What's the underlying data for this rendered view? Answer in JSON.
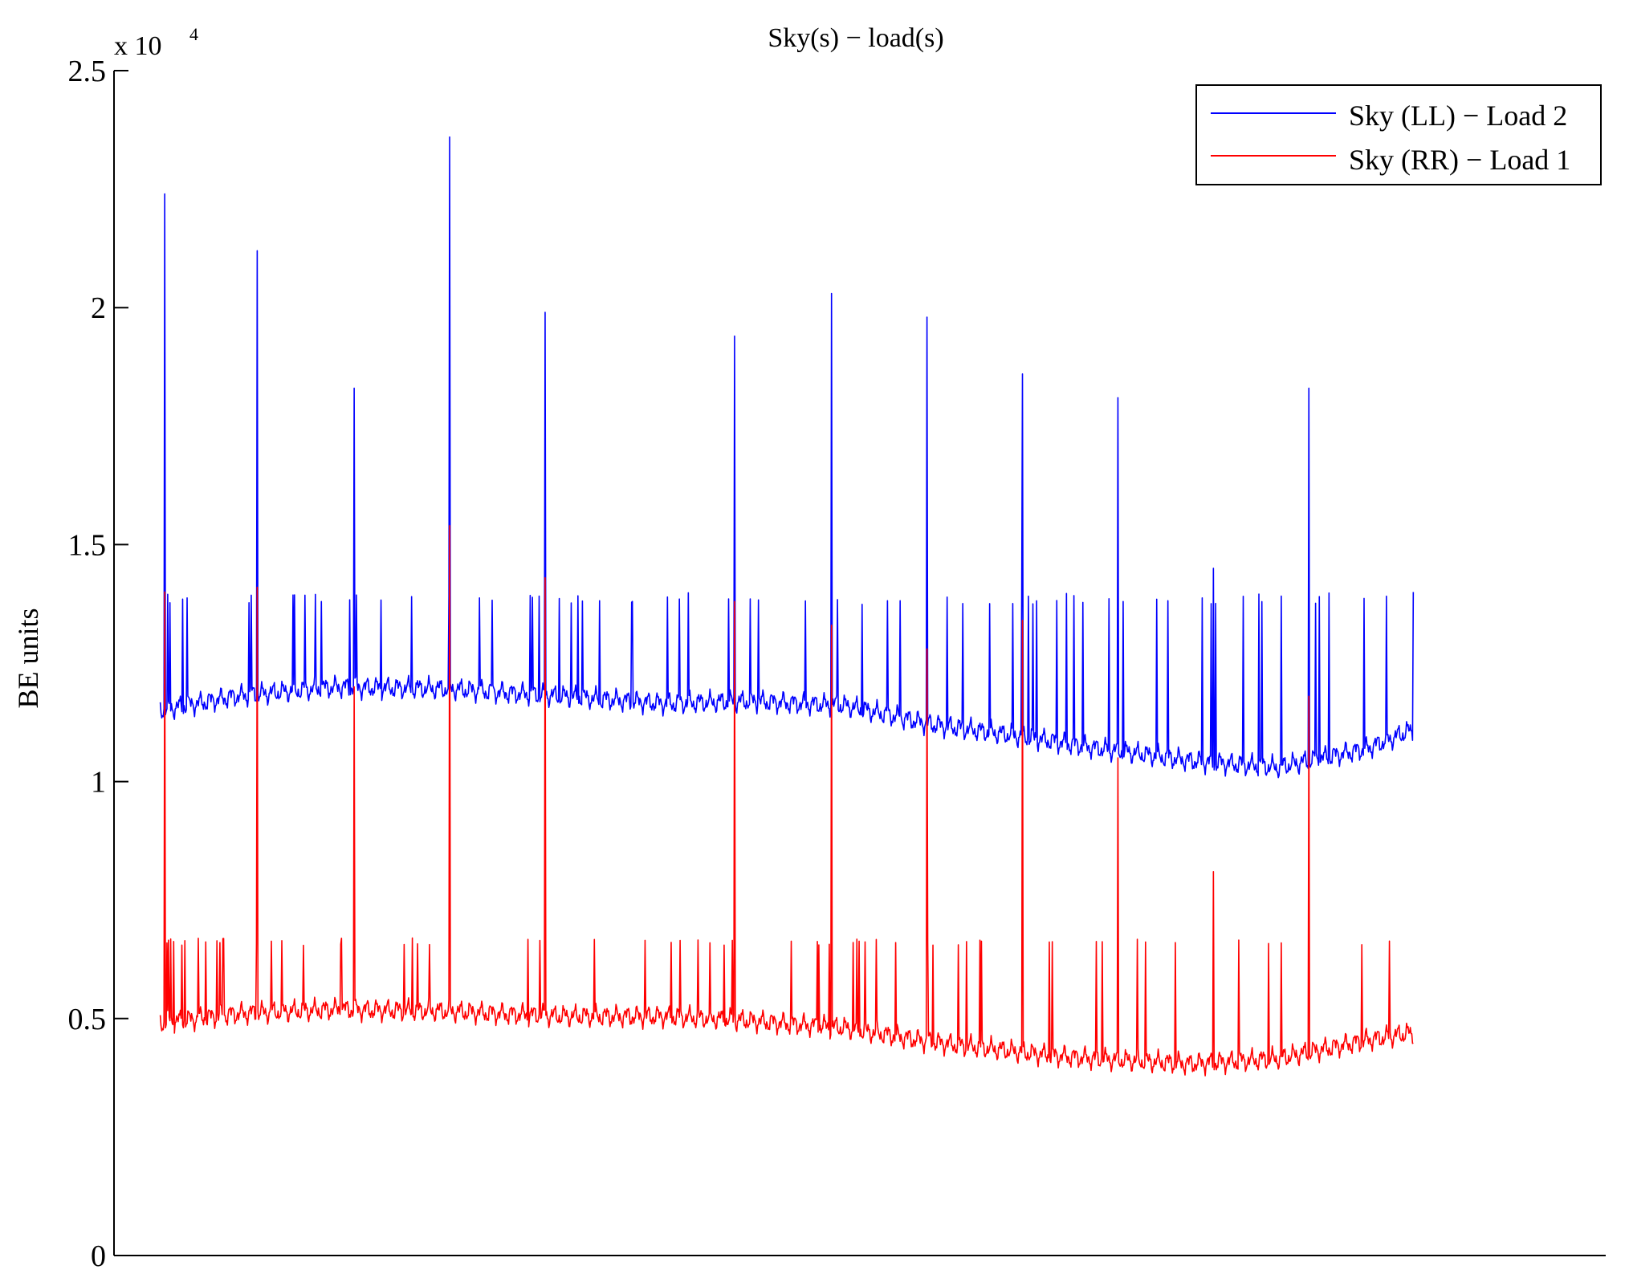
{
  "chart_data": {
    "type": "line",
    "title": "Sky(s) − load(s)",
    "xlabel": "",
    "ylabel": "BE units",
    "y_exponent_label": "x 10",
    "y_exponent_power": "4",
    "ylim": [
      0,
      25000
    ],
    "yticks": [
      0,
      5000,
      10000,
      15000,
      20000,
      25000
    ],
    "ytick_labels": [
      "0",
      "0.5",
      "1",
      "1.5",
      "2",
      "2.5"
    ],
    "xlim": [
      0,
      1000
    ],
    "grid": false,
    "legend_position": "top-right",
    "series": [
      {
        "name": "Sky (LL) − Load 2",
        "color": "#0000ff",
        "x_range": [
          31,
          871
        ],
        "baseline_anchors": [
          [
            31,
            11500
          ],
          [
            80,
            11800
          ],
          [
            150,
            12000
          ],
          [
            230,
            11950
          ],
          [
            300,
            11800
          ],
          [
            370,
            11650
          ],
          [
            430,
            11700
          ],
          [
            490,
            11600
          ],
          [
            550,
            11200
          ],
          [
            620,
            10900
          ],
          [
            660,
            10700
          ],
          [
            720,
            10450
          ],
          [
            780,
            10300
          ],
          [
            840,
            10700
          ],
          [
            871,
            11100
          ]
        ],
        "big_spikes": [
          [
            34,
            22400
          ],
          [
            96,
            21200
          ],
          [
            161,
            18300
          ],
          [
            225,
            23600
          ],
          [
            289,
            19900
          ],
          [
            416,
            19400
          ],
          [
            481,
            20300
          ],
          [
            545,
            19800
          ],
          [
            609,
            18600
          ],
          [
            673,
            18100
          ],
          [
            737,
            14500
          ],
          [
            801,
            18300
          ]
        ],
        "small_spike_height": 14000
      },
      {
        "name": "Sky (RR) − Load 1",
        "color": "#ff0000",
        "x_range": [
          31,
          871
        ],
        "baseline_anchors": [
          [
            31,
            4900
          ],
          [
            80,
            5100
          ],
          [
            150,
            5200
          ],
          [
            230,
            5150
          ],
          [
            300,
            5050
          ],
          [
            370,
            5050
          ],
          [
            430,
            4950
          ],
          [
            490,
            4800
          ],
          [
            550,
            4500
          ],
          [
            620,
            4250
          ],
          [
            660,
            4150
          ],
          [
            720,
            4050
          ],
          [
            780,
            4150
          ],
          [
            840,
            4550
          ],
          [
            871,
            4700
          ]
        ],
        "big_spikes": [
          [
            34,
            14000
          ],
          [
            96,
            14100
          ],
          [
            161,
            12000
          ],
          [
            225,
            15400
          ],
          [
            289,
            14300
          ],
          [
            416,
            13800
          ],
          [
            481,
            13300
          ],
          [
            545,
            12800
          ],
          [
            609,
            13400
          ],
          [
            673,
            10500
          ],
          [
            737,
            8100
          ],
          [
            801,
            11800
          ]
        ],
        "small_spike_height": 6700
      }
    ]
  }
}
